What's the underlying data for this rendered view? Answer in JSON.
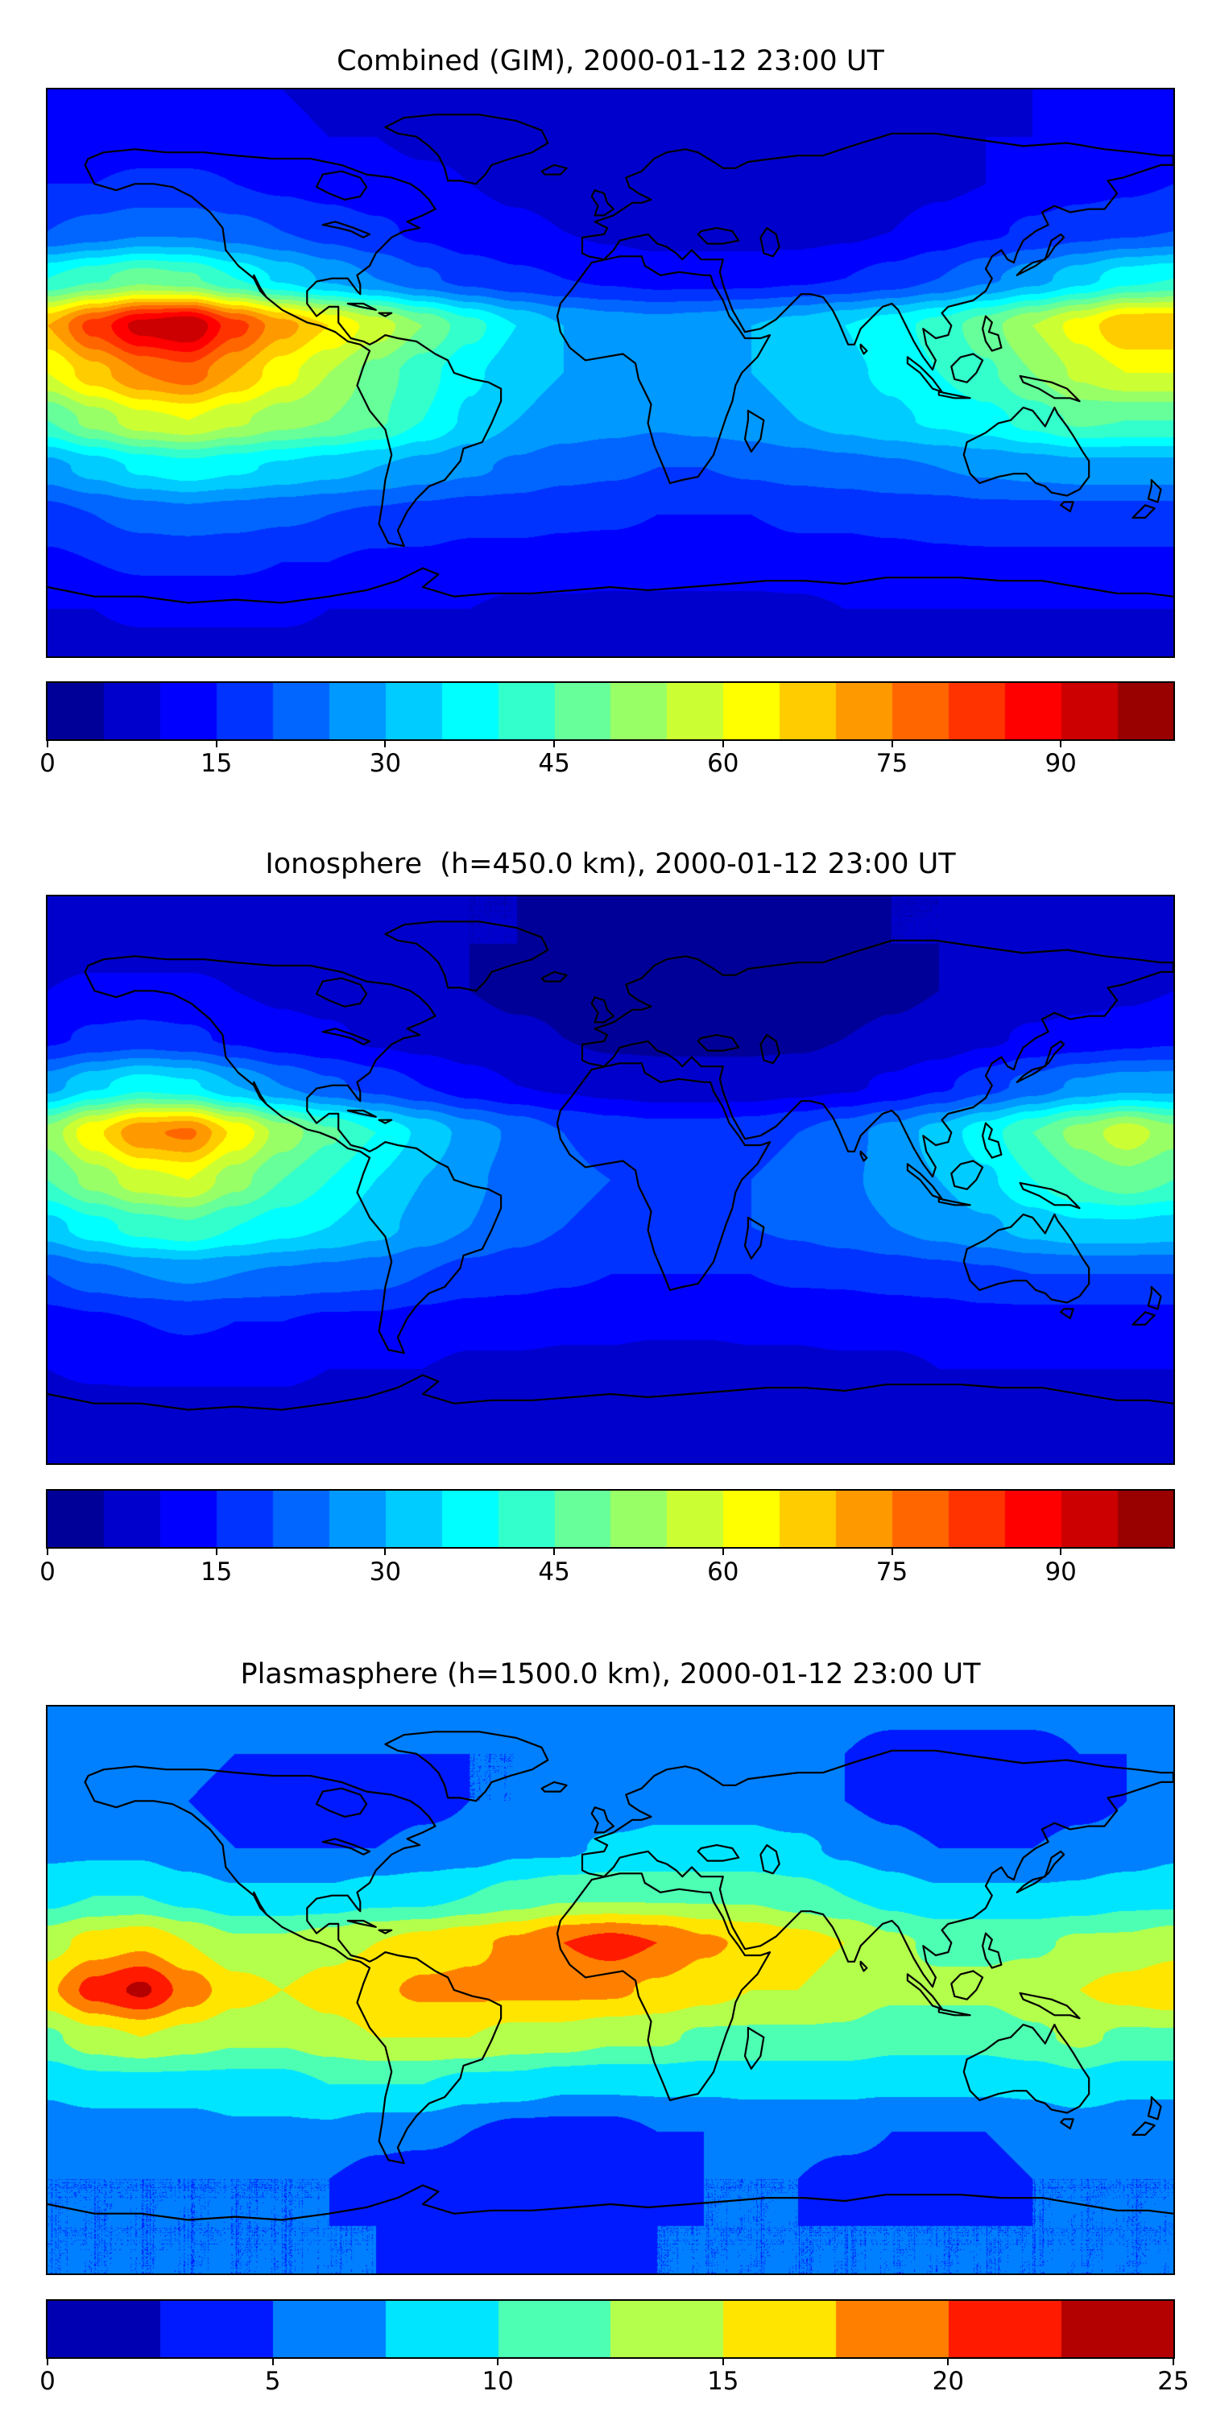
{
  "page": {
    "background": "#ffffff",
    "text_color": "#000000"
  },
  "chart_data": [
    {
      "type": "heatmap",
      "title": "Combined (GIM), 2000-01-12 23:00 UT",
      "colormap": "jet",
      "projection": "equirectangular",
      "coastlines": true,
      "xlim": [
        -180,
        180
      ],
      "ylim": [
        -90,
        90
      ],
      "colorbar": {
        "orientation": "horizontal",
        "vmin": 0,
        "vmax": 100,
        "levels": 20,
        "ticks": [
          0,
          15,
          30,
          45,
          60,
          75,
          90
        ]
      },
      "grid": {
        "lats": [
          90,
          75,
          60,
          45,
          30,
          15,
          0,
          -15,
          -30,
          -45,
          -60,
          -75,
          -90
        ],
        "lons": [
          -180,
          -165,
          -150,
          -135,
          -120,
          -105,
          -90,
          -75,
          -60,
          -45,
          -30,
          -15,
          0,
          15,
          30,
          45,
          60,
          75,
          90,
          105,
          120,
          135,
          150,
          165,
          180
        ],
        "values": [
          [
            10,
            10,
            10,
            10,
            10,
            10,
            9,
            9,
            9,
            8,
            8,
            8,
            8,
            8,
            8,
            8,
            8,
            8,
            9,
            9,
            9,
            10,
            10,
            10,
            10
          ],
          [
            12,
            12,
            12,
            12,
            12,
            11,
            10,
            10,
            9,
            9,
            8,
            8,
            7,
            7,
            7,
            7,
            7,
            8,
            8,
            9,
            10,
            10,
            11,
            12,
            12
          ],
          [
            15,
            15,
            16,
            16,
            15,
            14,
            13,
            12,
            11,
            10,
            9,
            8,
            7,
            6,
            6,
            6,
            6,
            7,
            8,
            9,
            10,
            12,
            13,
            14,
            15
          ],
          [
            20,
            22,
            24,
            24,
            22,
            20,
            18,
            16,
            14,
            12,
            11,
            10,
            9,
            8,
            8,
            8,
            8,
            9,
            10,
            12,
            14,
            16,
            18,
            19,
            20
          ],
          [
            40,
            44,
            48,
            46,
            40,
            34,
            29,
            25,
            21,
            18,
            16,
            15,
            14,
            13,
            13,
            13,
            14,
            15,
            17,
            20,
            24,
            28,
            33,
            38,
            40
          ],
          [
            70,
            82,
            92,
            95,
            82,
            72,
            65,
            58,
            50,
            42,
            35,
            30,
            28,
            27,
            28,
            30,
            32,
            35,
            38,
            42,
            48,
            55,
            62,
            70,
            70
          ],
          [
            60,
            68,
            75,
            78,
            70,
            62,
            55,
            48,
            42,
            36,
            32,
            30,
            29,
            28,
            29,
            30,
            32,
            34,
            36,
            40,
            44,
            50,
            56,
            60,
            60
          ],
          [
            45,
            52,
            58,
            60,
            56,
            52,
            50,
            46,
            40,
            34,
            30,
            28,
            27,
            26,
            27,
            28,
            30,
            32,
            34,
            36,
            38,
            42,
            46,
            45,
            45
          ],
          [
            28,
            32,
            36,
            38,
            36,
            34,
            32,
            30,
            28,
            26,
            24,
            22,
            21,
            20,
            20,
            21,
            22,
            23,
            24,
            25,
            26,
            27,
            28,
            28,
            28
          ],
          [
            18,
            20,
            22,
            23,
            22,
            21,
            20,
            19,
            18,
            17,
            17,
            16,
            16,
            15,
            15,
            15,
            16,
            16,
            17,
            17,
            18,
            18,
            18,
            18,
            18
          ],
          [
            14,
            15,
            16,
            16,
            16,
            15,
            15,
            14,
            14,
            13,
            13,
            13,
            12,
            12,
            12,
            12,
            13,
            13,
            13,
            14,
            14,
            14,
            14,
            14,
            14
          ],
          [
            10,
            10,
            11,
            11,
            11,
            11,
            10,
            10,
            10,
            10,
            9,
            9,
            9,
            9,
            9,
            9,
            9,
            10,
            10,
            10,
            10,
            10,
            10,
            10,
            10
          ],
          [
            8,
            8,
            8,
            8,
            8,
            8,
            8,
            8,
            8,
            8,
            8,
            8,
            8,
            8,
            8,
            8,
            8,
            8,
            8,
            8,
            8,
            8,
            8,
            8,
            8
          ]
        ]
      }
    },
    {
      "type": "heatmap",
      "title": "Ionosphere  (h=450.0 km), 2000-01-12 23:00 UT",
      "colormap": "jet",
      "projection": "equirectangular",
      "coastlines": true,
      "xlim": [
        -180,
        180
      ],
      "ylim": [
        -90,
        90
      ],
      "colorbar": {
        "orientation": "horizontal",
        "vmin": 0,
        "vmax": 100,
        "levels": 20,
        "ticks": [
          0,
          15,
          30,
          45,
          60,
          75,
          90
        ]
      },
      "grid": {
        "lats": [
          90,
          75,
          60,
          45,
          30,
          15,
          0,
          -15,
          -30,
          -45,
          -60,
          -75,
          -90
        ],
        "lons": [
          -180,
          -165,
          -150,
          -135,
          -120,
          -105,
          -90,
          -75,
          -60,
          -45,
          -30,
          -15,
          0,
          15,
          30,
          45,
          60,
          75,
          90,
          105,
          120,
          135,
          150,
          165,
          180
        ],
        "values": [
          [
            6,
            6,
            6,
            6,
            6,
            6,
            6,
            5,
            5,
            5,
            5,
            5,
            5,
            5,
            5,
            5,
            5,
            5,
            5,
            5,
            6,
            6,
            6,
            6,
            6
          ],
          [
            8,
            8,
            8,
            8,
            8,
            7,
            7,
            6,
            6,
            5,
            5,
            4,
            4,
            4,
            4,
            4,
            4,
            4,
            5,
            5,
            6,
            7,
            7,
            8,
            8
          ],
          [
            10,
            11,
            11,
            11,
            10,
            9,
            8,
            7,
            6,
            5,
            4,
            4,
            3,
            3,
            3,
            3,
            3,
            3,
            4,
            5,
            6,
            7,
            8,
            9,
            10
          ],
          [
            14,
            16,
            17,
            16,
            14,
            12,
            11,
            9,
            8,
            7,
            6,
            5,
            4,
            4,
            4,
            4,
            4,
            5,
            6,
            7,
            9,
            11,
            12,
            13,
            14
          ],
          [
            28,
            34,
            38,
            36,
            30,
            25,
            21,
            18,
            15,
            12,
            10,
            9,
            8,
            7,
            7,
            7,
            8,
            9,
            11,
            14,
            18,
            22,
            26,
            28,
            28
          ],
          [
            52,
            64,
            74,
            76,
            64,
            53,
            46,
            40,
            34,
            28,
            24,
            20,
            18,
            17,
            17,
            18,
            20,
            23,
            27,
            32,
            38,
            45,
            52,
            58,
            52
          ],
          [
            45,
            52,
            58,
            60,
            52,
            45,
            40,
            35,
            30,
            26,
            23,
            21,
            20,
            19,
            19,
            20,
            22,
            24,
            27,
            30,
            34,
            40,
            45,
            48,
            45
          ],
          [
            33,
            38,
            42,
            44,
            40,
            37,
            35,
            32,
            28,
            25,
            22,
            20,
            19,
            19,
            19,
            20,
            21,
            23,
            25,
            27,
            29,
            32,
            34,
            34,
            33
          ],
          [
            20,
            23,
            25,
            26,
            25,
            24,
            23,
            22,
            20,
            18,
            17,
            16,
            15,
            15,
            15,
            15,
            16,
            16,
            17,
            18,
            19,
            20,
            20,
            20,
            20
          ],
          [
            13,
            14,
            15,
            16,
            15,
            15,
            14,
            14,
            13,
            12,
            12,
            11,
            11,
            11,
            11,
            11,
            11,
            12,
            12,
            12,
            13,
            13,
            13,
            13,
            13
          ],
          [
            10,
            11,
            11,
            11,
            11,
            11,
            10,
            10,
            10,
            9,
            9,
            9,
            9,
            8,
            8,
            9,
            9,
            9,
            9,
            10,
            10,
            10,
            10,
            10,
            10
          ],
          [
            7,
            7,
            8,
            8,
            8,
            8,
            7,
            7,
            7,
            7,
            7,
            6,
            6,
            6,
            6,
            6,
            7,
            7,
            7,
            7,
            7,
            7,
            7,
            7,
            7
          ],
          [
            6,
            6,
            6,
            6,
            6,
            6,
            6,
            6,
            6,
            6,
            6,
            6,
            6,
            6,
            6,
            6,
            6,
            6,
            6,
            6,
            6,
            6,
            6,
            6,
            6
          ]
        ]
      }
    },
    {
      "type": "heatmap",
      "title": "Plasmasphere (h=1500.0 km), 2000-01-12 23:00 UT",
      "colormap": "jet",
      "projection": "equirectangular",
      "coastlines": true,
      "xlim": [
        -180,
        180
      ],
      "ylim": [
        -90,
        90
      ],
      "colorbar": {
        "orientation": "horizontal",
        "vmin": 0,
        "vmax": 25,
        "levels": 10,
        "ticks": [
          0,
          5,
          10,
          15,
          20,
          25
        ]
      },
      "grid": {
        "lats": [
          90,
          75,
          60,
          45,
          30,
          15,
          0,
          -15,
          -30,
          -45,
          -60,
          -75,
          -90
        ],
        "lons": [
          -180,
          -165,
          -150,
          -135,
          -120,
          -105,
          -90,
          -75,
          -60,
          -45,
          -30,
          -15,
          0,
          15,
          30,
          45,
          60,
          75,
          90,
          105,
          120,
          135,
          150,
          165,
          180
        ],
        "values": [
          [
            6,
            6,
            6,
            6,
            6,
            6,
            6,
            6,
            6,
            6,
            6,
            6,
            6,
            6,
            6,
            6,
            6,
            6,
            6,
            6,
            6,
            6,
            6,
            6,
            6
          ],
          [
            6,
            6,
            6,
            6,
            5,
            5,
            5,
            5,
            5,
            5,
            5,
            6,
            6,
            6,
            6,
            6,
            6,
            5,
            4,
            4,
            4,
            4,
            5,
            5,
            6
          ],
          [
            6,
            6,
            6,
            5,
            4,
            4,
            3,
            3,
            4,
            5,
            5,
            6,
            6,
            7,
            7,
            7,
            6,
            5,
            4,
            3,
            3,
            3,
            4,
            5,
            6
          ],
          [
            7,
            7,
            7,
            6,
            5,
            5,
            5,
            5,
            6,
            6,
            7,
            7,
            8,
            8,
            8,
            8,
            8,
            7,
            6,
            5,
            5,
            5,
            6,
            6,
            7
          ],
          [
            9,
            10,
            10,
            9,
            8,
            8,
            8,
            9,
            9,
            10,
            11,
            12,
            12,
            12,
            12,
            12,
            11,
            10,
            9,
            8,
            8,
            8,
            8,
            9,
            9
          ],
          [
            14,
            16,
            17,
            15,
            13,
            13,
            14,
            15,
            16,
            17,
            18,
            20,
            21,
            20,
            18,
            17,
            16,
            15,
            13,
            12,
            12,
            12,
            13,
            13,
            14
          ],
          [
            17,
            21,
            23,
            19,
            16,
            15,
            16,
            17,
            18,
            18,
            18,
            18,
            18,
            17,
            16,
            15,
            15,
            14,
            13,
            13,
            13,
            14,
            15,
            16,
            17
          ],
          [
            12,
            14,
            15,
            14,
            13,
            13,
            14,
            15,
            15,
            15,
            14,
            14,
            13,
            13,
            12,
            12,
            12,
            12,
            11,
            11,
            11,
            12,
            13,
            12,
            12
          ],
          [
            8,
            9,
            9,
            9,
            9,
            9,
            10,
            10,
            10,
            9,
            9,
            8,
            8,
            8,
            8,
            8,
            8,
            8,
            8,
            8,
            8,
            8,
            9,
            8,
            8
          ],
          [
            6,
            6,
            6,
            6,
            7,
            7,
            7,
            6,
            6,
            5,
            4,
            4,
            4,
            5,
            5,
            6,
            6,
            6,
            5,
            5,
            5,
            6,
            6,
            6,
            6
          ],
          [
            5,
            5,
            5,
            5,
            5,
            5,
            5,
            4,
            3,
            3,
            3,
            3,
            4,
            4,
            5,
            5,
            5,
            4,
            4,
            4,
            4,
            5,
            5,
            5,
            5
          ],
          [
            5,
            5,
            5,
            5,
            5,
            5,
            5,
            5,
            4,
            4,
            4,
            4,
            4,
            5,
            5,
            5,
            5,
            5,
            5,
            5,
            5,
            5,
            5,
            5,
            5
          ],
          [
            5,
            5,
            5,
            5,
            5,
            5,
            5,
            5,
            5,
            5,
            5,
            5,
            5,
            5,
            5,
            5,
            5,
            5,
            5,
            5,
            5,
            5,
            5,
            5,
            5
          ]
        ]
      }
    }
  ]
}
